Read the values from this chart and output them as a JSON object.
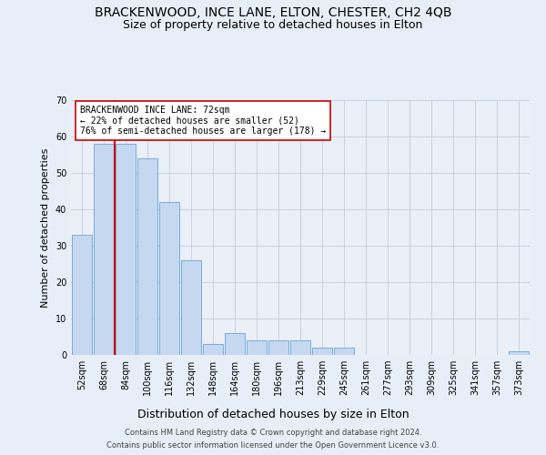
{
  "title1": "BRACKENWOOD, INCE LANE, ELTON, CHESTER, CH2 4QB",
  "title2": "Size of property relative to detached houses in Elton",
  "xlabel": "Distribution of detached houses by size in Elton",
  "ylabel": "Number of detached properties",
  "categories": [
    "52sqm",
    "68sqm",
    "84sqm",
    "100sqm",
    "116sqm",
    "132sqm",
    "148sqm",
    "164sqm",
    "180sqm",
    "196sqm",
    "213sqm",
    "229sqm",
    "245sqm",
    "261sqm",
    "277sqm",
    "293sqm",
    "309sqm",
    "325sqm",
    "341sqm",
    "357sqm",
    "373sqm"
  ],
  "values": [
    33,
    58,
    58,
    54,
    42,
    26,
    3,
    6,
    4,
    4,
    4,
    2,
    2,
    0,
    0,
    0,
    0,
    0,
    0,
    0,
    1
  ],
  "bar_color": "#c5d8f0",
  "bar_edge_color": "#6aa3d4",
  "vline_color": "#cc0000",
  "annotation_text": "BRACKENWOOD INCE LANE: 72sqm\n← 22% of detached houses are smaller (52)\n76% of semi-detached houses are larger (178) →",
  "annotation_box_color": "#ffffff",
  "annotation_box_edge_color": "#cc0000",
  "ylim": [
    0,
    70
  ],
  "yticks": [
    0,
    10,
    20,
    30,
    40,
    50,
    60,
    70
  ],
  "bg_color": "#e8eef8",
  "plot_bg_color": "#eaeff8",
  "footer1": "Contains HM Land Registry data © Crown copyright and database right 2024.",
  "footer2": "Contains public sector information licensed under the Open Government Licence v3.0.",
  "title1_fontsize": 10,
  "title2_fontsize": 9,
  "xlabel_fontsize": 9,
  "ylabel_fontsize": 8,
  "tick_fontsize": 7,
  "annotation_fontsize": 7,
  "footer_fontsize": 6
}
